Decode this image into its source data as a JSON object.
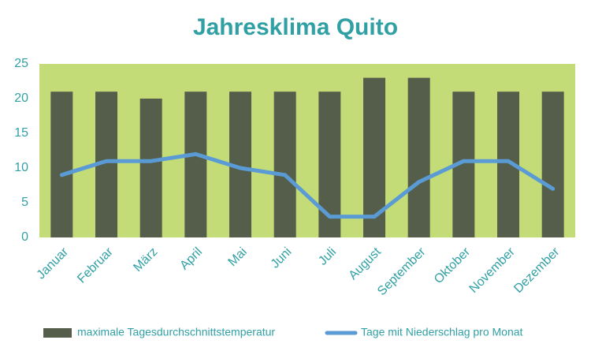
{
  "chart_data": {
    "type": "combo",
    "title": "Jahresklima Quito",
    "categories": [
      "Januar",
      "Februar",
      "März",
      "April",
      "Mai",
      "Juni",
      "Juli",
      "August",
      "September",
      "Oktober",
      "November",
      "Dezember"
    ],
    "series": [
      {
        "name": "maximale Tagesdurchschnittstemperatur",
        "type": "bar",
        "color": "#545e4a",
        "values": [
          21,
          21,
          20,
          21,
          21,
          21,
          21,
          23,
          23,
          21,
          21,
          21
        ]
      },
      {
        "name": "Tage mit Niederschlag pro Monat",
        "type": "line",
        "color": "#5b9bd5",
        "values": [
          9,
          11,
          11,
          12,
          10,
          9,
          3,
          3,
          8,
          11,
          11,
          7
        ]
      }
    ],
    "ylim": [
      0,
      25
    ],
    "yticks": [
      0,
      5,
      10,
      15,
      20,
      25
    ],
    "grid": false,
    "plot_background": "#c4dc78",
    "legend": "bottom"
  }
}
